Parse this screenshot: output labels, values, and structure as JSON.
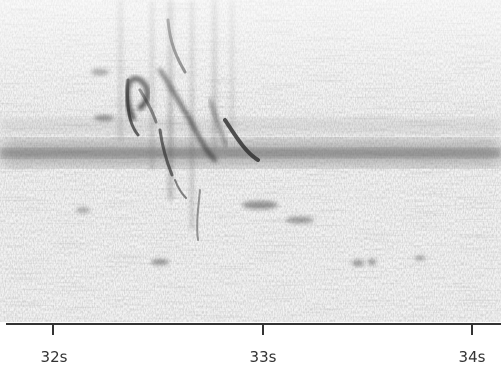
{
  "spectrogram": {
    "colors": {
      "background": "#ffffff",
      "noise": "#5a5a5a",
      "band": "#6a6a6a",
      "mark": "#2a2a2a",
      "axis": "#333333"
    }
  },
  "time_axis": {
    "ticks": [
      {
        "label": "32s"
      },
      {
        "label": "33s"
      },
      {
        "label": "34s"
      }
    ]
  }
}
